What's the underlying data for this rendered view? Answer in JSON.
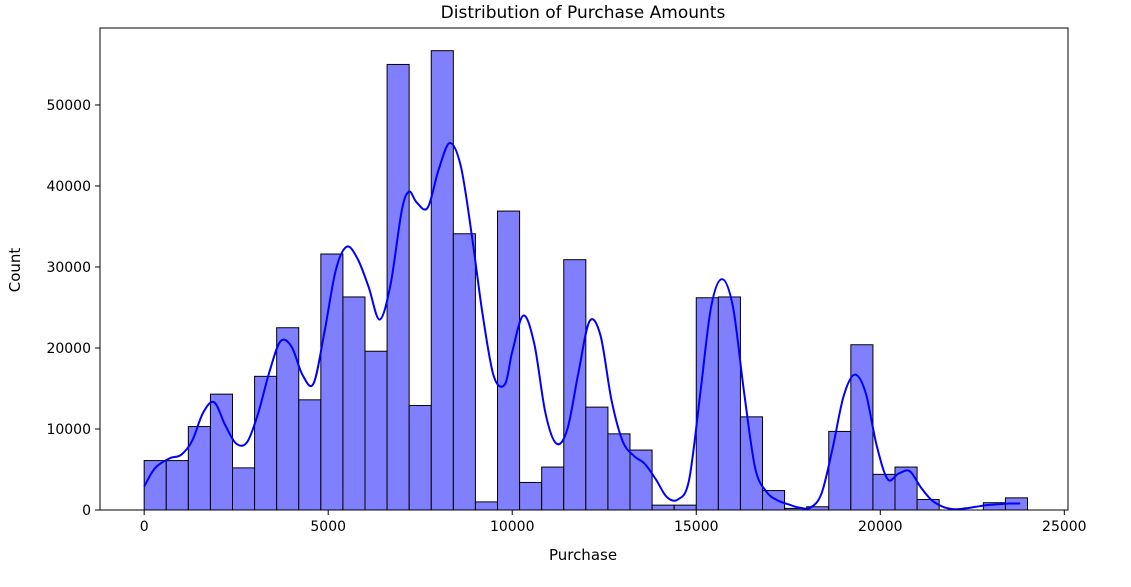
{
  "chart_data": {
    "type": "bar",
    "subtype": "histogram_with_kde",
    "title": "Distribution of Purchase Amounts",
    "xlabel": "Purchase",
    "ylabel": "Count",
    "xlim": [
      -1200,
      25100
    ],
    "ylim": [
      0,
      59500
    ],
    "xticks": [
      0,
      5000,
      10000,
      15000,
      20000,
      25000
    ],
    "yticks": [
      0,
      10000,
      20000,
      30000,
      40000,
      50000
    ],
    "grid": false,
    "bar_color": "#8080ff",
    "bar_edge_color": "#000000",
    "line_color": "#0000ff",
    "bins": {
      "start": 0,
      "width": 600,
      "counts": [
        6100,
        6100,
        10300,
        14300,
        5200,
        16500,
        22500,
        13600,
        31600,
        26300,
        19600,
        55000,
        12900,
        56700,
        34100,
        1000,
        36900,
        3400,
        5300,
        30900,
        12700,
        9400,
        7400,
        600,
        600,
        26200,
        26300,
        11500,
        2400,
        200,
        400,
        9700,
        20400,
        4400,
        5300,
        1300,
        0,
        0,
        900,
        1500
      ]
    },
    "kde": {
      "x": [
        0,
        300,
        700,
        1000,
        1300,
        1600,
        1900,
        2200,
        2500,
        2800,
        3100,
        3400,
        3700,
        4000,
        4300,
        4600,
        4900,
        5200,
        5500,
        5800,
        6100,
        6400,
        6700,
        7000,
        7200,
        7400,
        7700,
        8000,
        8300,
        8600,
        8900,
        9200,
        9500,
        9800,
        10000,
        10300,
        10600,
        10900,
        11200,
        11500,
        11800,
        12100,
        12400,
        12700,
        13000,
        13300,
        13600,
        13900,
        14200,
        14500,
        14800,
        15100,
        15400,
        15700,
        16000,
        16300,
        16600,
        16900,
        17200,
        17500,
        17800,
        18100,
        18400,
        18700,
        19000,
        19300,
        19600,
        19900,
        20200,
        20500,
        20800,
        21100,
        21400,
        21700,
        22000,
        22300,
        22600,
        22900,
        23200,
        23500,
        23800
      ],
      "y": [
        2900,
        5200,
        6400,
        6800,
        8500,
        12000,
        13300,
        10500,
        8200,
        8400,
        12000,
        17000,
        20800,
        20200,
        16700,
        15600,
        22000,
        29500,
        32500,
        31000,
        27500,
        23500,
        28000,
        37000,
        39300,
        38000,
        37300,
        42000,
        45300,
        42500,
        34000,
        24000,
        16500,
        15500,
        19500,
        24000,
        20500,
        12000,
        8200,
        10000,
        17000,
        23300,
        21500,
        13500,
        8500,
        6700,
        5700,
        3800,
        1600,
        1300,
        3600,
        14000,
        25000,
        28500,
        25000,
        14500,
        5200,
        2300,
        1200,
        700,
        300,
        300,
        2000,
        7500,
        14000,
        16700,
        14500,
        8000,
        3800,
        4500,
        4800,
        2800,
        1200,
        400,
        100,
        200,
        400,
        600,
        700,
        800,
        800
      ]
    }
  }
}
